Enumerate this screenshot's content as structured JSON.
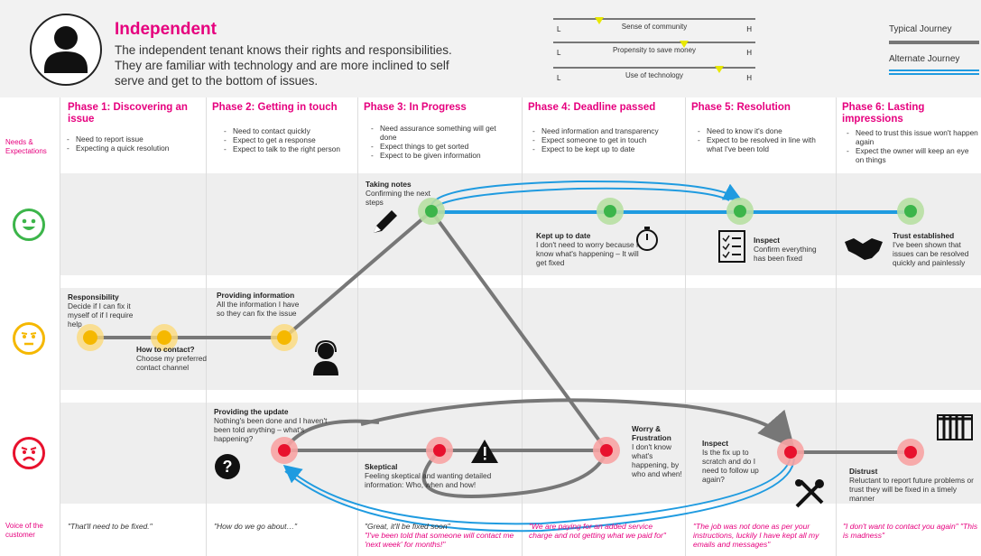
{
  "persona": {
    "name": "Independent",
    "description": "The independent tenant knows their rights and responsibilities. They are familiar with technology and are more inclined to self serve and get to the bottom of issues."
  },
  "scales": [
    {
      "label": "Sense of community",
      "low": "L",
      "high": "H",
      "value": 0.23
    },
    {
      "label": "Propensity to save money",
      "low": "L",
      "high": "H",
      "value": 0.65
    },
    {
      "label": "Use of technology",
      "low": "L",
      "high": "H",
      "value": 0.82
    }
  ],
  "legend": {
    "typical": "Typical Journey",
    "alternate": "Alternate Journey",
    "typical_color": "#777777",
    "alternate_color": "#1f9be0"
  },
  "row_labels": {
    "needs": "Needs & Expectations",
    "voice": "Voice of the customer"
  },
  "emotions": [
    "happy-face-icon",
    "neutral-face-icon",
    "sad-face-icon"
  ],
  "phases": [
    {
      "title": "Phase 1: Discovering an issue",
      "needs": [
        "Need to report issue",
        "Expecting a quick resolution"
      ]
    },
    {
      "title": "Phase 2: Getting in touch",
      "needs": [
        "Need to contact quickly",
        "Expect to get a response",
        "Expect to talk to the right person"
      ]
    },
    {
      "title": "Phase 3: In Progress",
      "needs": [
        "Need assurance something will get done",
        "Expect things to get sorted",
        "Expect to be given information"
      ]
    },
    {
      "title": "Phase 4: Deadline passed",
      "needs": [
        "Need information and transparency",
        "Expect someone to get in touch",
        "Expect to be kept up to date"
      ]
    },
    {
      "title": "Phase 5: Resolution",
      "needs": [
        "Need to know it's done",
        "Expect to be resolved in line with what I've been told"
      ]
    },
    {
      "title": "Phase 6: Lasting impressions",
      "needs": [
        "Need to trust this issue won't happen again",
        "Expect the owner will keep an eye on things"
      ]
    }
  ],
  "nodes": {
    "responsibility": {
      "title": "Responsibility",
      "text": "Decide if I can fix it myself of if I require help"
    },
    "how_to_contact": {
      "title": "How to contact?",
      "text": "Choose my preferred contact channel"
    },
    "providing_info": {
      "title": "Providing information",
      "text": "All the information I have so they can fix the issue"
    },
    "taking_notes": {
      "title": "Taking notes",
      "text": "Confirming the next steps"
    },
    "kept_up": {
      "title": "Kept up to date",
      "text": "I don't need to worry because I know what's happening – It will get fixed"
    },
    "inspect_good": {
      "title": "Inspect",
      "text": "Confirm everything has been fixed"
    },
    "trust": {
      "title": "Trust established",
      "text": "I've been shown that issues can be resolved quickly and painlessly"
    },
    "providing_update": {
      "title": "Providing the update",
      "text": "Nothing's been done and I haven't been told anything – what's happening?"
    },
    "skeptical": {
      "title": "Skeptical",
      "text": "Feeling skeptical and wanting detailed information: Who, when and how!"
    },
    "worry": {
      "title": "Worry & Frustration",
      "text": "I don't know what's happening, by who and when!"
    },
    "inspect_bad": {
      "title": "Inspect",
      "text": "Is the fix up to scratch and do I need to follow up again?"
    },
    "distrust": {
      "title": "Distrust",
      "text": "Reluctant to report future problems or trust they will be fixed in a timely manner"
    }
  },
  "quotes": [
    {
      "dark": "\"That'll need to be fixed.\"",
      "red": ""
    },
    {
      "dark": "\"How do we go about…\"",
      "red": ""
    },
    {
      "dark": "\"Great, it'll be fixed soon\"",
      "red": "\"I've been told that someone will contact me 'next week' for months!\""
    },
    {
      "dark": "",
      "red": "\"We are paying for an added service charge and not getting what we paid for\""
    },
    {
      "dark": "",
      "red": "\"The job was not done as per your instructions, luckily I have kept all my emails and messages\""
    },
    {
      "dark": "",
      "red": "\"I don't want to contact you again\" \"This is madness\""
    }
  ],
  "colors": {
    "accent": "#e6007e",
    "happy": "#3cb54a",
    "neutral": "#f5b800",
    "sad": "#e8112d",
    "path": "#777777",
    "alternate": "#1f9be0"
  }
}
